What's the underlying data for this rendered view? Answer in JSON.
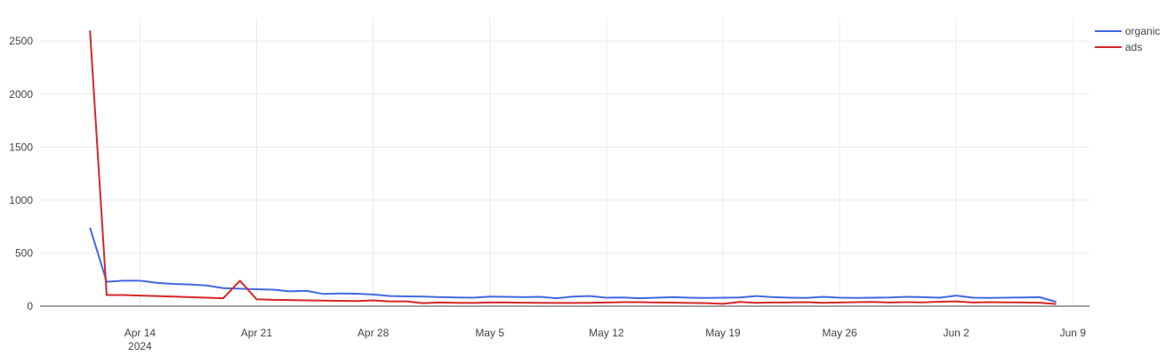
{
  "chart_data": {
    "type": "line",
    "x": [
      "2024-04-11",
      "2024-04-12",
      "2024-04-13",
      "2024-04-14",
      "2024-04-15",
      "2024-04-16",
      "2024-04-17",
      "2024-04-18",
      "2024-04-19",
      "2024-04-20",
      "2024-04-21",
      "2024-04-22",
      "2024-04-23",
      "2024-04-24",
      "2024-04-25",
      "2024-04-26",
      "2024-04-27",
      "2024-04-28",
      "2024-04-29",
      "2024-04-30",
      "2024-05-01",
      "2024-05-02",
      "2024-05-03",
      "2024-05-04",
      "2024-05-05",
      "2024-05-06",
      "2024-05-07",
      "2024-05-08",
      "2024-05-09",
      "2024-05-10",
      "2024-05-11",
      "2024-05-12",
      "2024-05-13",
      "2024-05-14",
      "2024-05-15",
      "2024-05-16",
      "2024-05-17",
      "2024-05-18",
      "2024-05-19",
      "2024-05-20",
      "2024-05-21",
      "2024-05-22",
      "2024-05-23",
      "2024-05-24",
      "2024-05-25",
      "2024-05-26",
      "2024-05-27",
      "2024-05-28",
      "2024-05-29",
      "2024-05-30",
      "2024-05-31",
      "2024-06-01",
      "2024-06-02",
      "2024-06-03",
      "2024-06-04",
      "2024-06-05",
      "2024-06-06",
      "2024-06-07",
      "2024-06-08"
    ],
    "series": [
      {
        "name": "organic",
        "color": "#4169e1",
        "values": [
          740,
          230,
          240,
          240,
          220,
          210,
          205,
          195,
          170,
          165,
          160,
          155,
          140,
          145,
          115,
          120,
          118,
          110,
          95,
          92,
          90,
          85,
          82,
          80,
          90,
          88,
          85,
          88,
          75,
          90,
          95,
          80,
          82,
          75,
          80,
          85,
          80,
          78,
          80,
          82,
          95,
          85,
          80,
          78,
          88,
          80,
          78,
          80,
          82,
          88,
          85,
          80,
          100,
          80,
          78,
          80,
          82,
          85,
          40
        ],
        "color_css": "#4169e1"
      },
      {
        "name": "ads",
        "color": "#d62728",
        "values": [
          2600,
          105,
          105,
          100,
          95,
          90,
          85,
          80,
          75,
          240,
          65,
          60,
          58,
          55,
          52,
          50,
          48,
          55,
          45,
          45,
          28,
          35,
          32,
          30,
          35,
          35,
          33,
          32,
          30,
          30,
          32,
          35,
          38,
          38,
          35,
          34,
          30,
          28,
          22,
          40,
          32,
          35,
          35,
          38,
          32,
          35,
          38,
          40,
          35,
          38,
          36,
          42,
          45,
          35,
          38,
          36,
          35,
          33,
          20
        ]
      }
    ],
    "x_ticks": [
      {
        "label": "Apr 14",
        "value": "2024-04-14"
      },
      {
        "label": "Apr 21",
        "value": "2024-04-21"
      },
      {
        "label": "Apr 28",
        "value": "2024-04-28"
      },
      {
        "label": "May 5",
        "value": "2024-05-05"
      },
      {
        "label": "May 12",
        "value": "2024-05-12"
      },
      {
        "label": "May 19",
        "value": "2024-05-19"
      },
      {
        "label": "May 26",
        "value": "2024-05-26"
      },
      {
        "label": "Jun 2",
        "value": "2024-06-02"
      },
      {
        "label": "Jun 9",
        "value": "2024-06-09"
      }
    ],
    "x_subtick_label": "2024",
    "y_ticks": [
      0,
      500,
      1000,
      1500,
      2000,
      2500
    ],
    "y_tick_labels": [
      "0",
      "500",
      "1000",
      "1500",
      "2000",
      "2500"
    ],
    "xlim": [
      "2024-04-08",
      "2024-06-10"
    ],
    "ylim": [
      0,
      2720
    ],
    "grid": true,
    "legend_position": "top-right",
    "title": "",
    "xlabel": "",
    "ylabel": ""
  }
}
